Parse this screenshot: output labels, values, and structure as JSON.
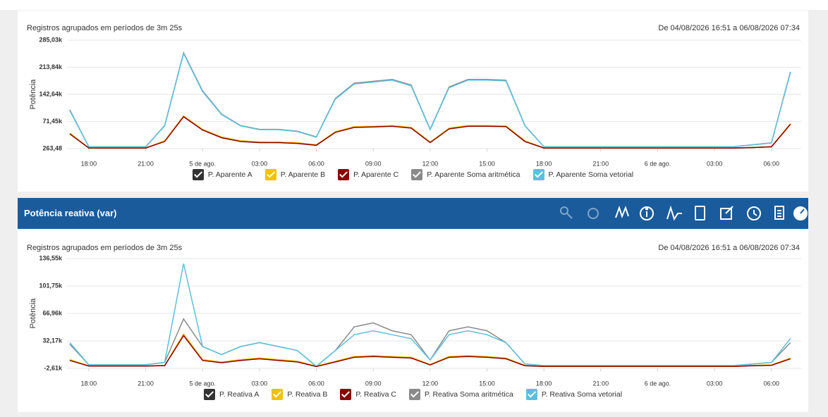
{
  "panel": {
    "title": "Potência reativa (var)"
  },
  "chart_data": [
    {
      "type": "line",
      "subtitle": "Registros agrupados em períodos de 3m 25s",
      "range": "De 04/08/2026 16:51 a 06/08/2026 07:34",
      "y_label": "Potência",
      "x": [
        17,
        18,
        19,
        20,
        21,
        22,
        23,
        24,
        25,
        26,
        27,
        28,
        29,
        30,
        31,
        32,
        33,
        34,
        35,
        36,
        37,
        38,
        39,
        40,
        41,
        42,
        43,
        44,
        45,
        46,
        47,
        48,
        49,
        50,
        51,
        52,
        53,
        54,
        55
      ],
      "xlim": [
        16.85,
        55.57
      ],
      "xticks": [
        {
          "value": 18,
          "label": "18:00"
        },
        {
          "value": 21,
          "label": "21:00"
        },
        {
          "value": 24,
          "label": "5 de ago."
        },
        {
          "value": 27,
          "label": "03:00"
        },
        {
          "value": 30,
          "label": "06:00"
        },
        {
          "value": 33,
          "label": "09:00"
        },
        {
          "value": 36,
          "label": "12:00"
        },
        {
          "value": 39,
          "label": "15:00"
        },
        {
          "value": 42,
          "label": "18:00"
        },
        {
          "value": 45,
          "label": "21:00"
        },
        {
          "value": 48,
          "label": "6 de ago."
        },
        {
          "value": 51,
          "label": "03:00"
        },
        {
          "value": 54,
          "label": "06:00"
        }
      ],
      "ylim": [
        263.48,
        285030
      ],
      "yticks": [
        {
          "value": 263.48,
          "label": "263,48"
        },
        {
          "value": 71450,
          "label": "71,45k"
        },
        {
          "value": 142640,
          "label": "142,64k"
        },
        {
          "value": 213840,
          "label": "213,84k"
        },
        {
          "value": 285030,
          "label": "285,03k"
        }
      ],
      "grid": true,
      "series": [
        {
          "name": "P. Aparente Soma aritmética",
          "color": "#8a8a8a",
          "values": [
            102000,
            5200,
            5200,
            5200,
            5200,
            61000,
            252000,
            152000,
            91000,
            61000,
            51000,
            51000,
            46000,
            31000,
            132000,
            172000,
            177000,
            182000,
            167000,
            51000,
            162000,
            182000,
            182000,
            180000,
            61000,
            5200,
            5200,
            5200,
            5200,
            5200,
            5200,
            5200,
            5200,
            5200,
            5200,
            5200,
            10500,
            15500,
            202000
          ]
        },
        {
          "name": "P. Aparente Soma vetorial",
          "color": "#5bc0de",
          "values": [
            100000,
            5000,
            5000,
            5000,
            5000,
            60000,
            250000,
            150000,
            90000,
            60000,
            50000,
            50000,
            45000,
            30000,
            130000,
            170000,
            175000,
            180000,
            165000,
            50000,
            160000,
            180000,
            180000,
            178000,
            60000,
            5000,
            5000,
            5000,
            5000,
            5000,
            5000,
            5000,
            5000,
            5000,
            5000,
            5000,
            10000,
            15000,
            200000
          ]
        },
        {
          "name": "P. Aparente A",
          "color": "#333333",
          "values": [
            40000,
            2000,
            2000,
            2000,
            2000,
            20000,
            85000,
            50000,
            30000,
            20000,
            17000,
            17000,
            15000,
            10000,
            44000,
            57000,
            58000,
            60000,
            55000,
            17000,
            53000,
            60000,
            60000,
            59000,
            20000,
            2000,
            2000,
            2000,
            2000,
            2000,
            2000,
            2000,
            2000,
            2000,
            2000,
            2000,
            3000,
            5000,
            65000
          ]
        },
        {
          "name": "P. Aparente B",
          "color": "#f5c000",
          "values": [
            41000,
            2000,
            2000,
            2000,
            2000,
            21000,
            86000,
            51000,
            31000,
            21000,
            18000,
            17000,
            16000,
            10000,
            45000,
            58000,
            59000,
            61000,
            56000,
            17000,
            54000,
            61000,
            61000,
            60000,
            21000,
            2000,
            2000,
            2000,
            2000,
            2000,
            2000,
            2000,
            2000,
            2000,
            2000,
            2000,
            3000,
            5000,
            66000
          ]
        },
        {
          "name": "P. Aparente C",
          "color": "#8b0000",
          "values": [
            39000,
            2000,
            2000,
            2000,
            2000,
            19000,
            84000,
            49000,
            29000,
            19000,
            16000,
            16000,
            14000,
            9000,
            43000,
            56000,
            57000,
            59000,
            54000,
            16000,
            52000,
            59000,
            59000,
            58000,
            19000,
            2000,
            2000,
            2000,
            2000,
            2000,
            2000,
            2000,
            2000,
            2000,
            2000,
            2000,
            3000,
            5000,
            64000
          ]
        }
      ],
      "legend": [
        "P. Aparente A",
        "P. Aparente B",
        "P. Aparente C",
        "P. Aparente Soma aritmética",
        "P. Aparente Soma vetorial"
      ]
    },
    {
      "type": "line",
      "subtitle": "Registros agrupados em períodos de 3m 25s",
      "range": "De 04/08/2026 16:51 a 06/08/2026 07:34",
      "y_label": "Potência",
      "x": [
        17,
        18,
        19,
        20,
        21,
        22,
        23,
        24,
        25,
        26,
        27,
        28,
        29,
        30,
        31,
        32,
        33,
        34,
        35,
        36,
        37,
        38,
        39,
        40,
        41,
        42,
        43,
        44,
        45,
        46,
        47,
        48,
        49,
        50,
        51,
        52,
        53,
        54,
        55
      ],
      "xlim": [
        16.85,
        55.57
      ],
      "xticks": [
        {
          "value": 18,
          "label": "18:00"
        },
        {
          "value": 21,
          "label": "21:00"
        },
        {
          "value": 24,
          "label": "5 de ago."
        },
        {
          "value": 27,
          "label": "03:00"
        },
        {
          "value": 30,
          "label": "06:00"
        },
        {
          "value": 33,
          "label": "09:00"
        },
        {
          "value": 36,
          "label": "12:00"
        },
        {
          "value": 39,
          "label": "15:00"
        },
        {
          "value": 42,
          "label": "18:00"
        },
        {
          "value": 45,
          "label": "21:00"
        },
        {
          "value": 48,
          "label": "6 de ago."
        },
        {
          "value": 51,
          "label": "03:00"
        },
        {
          "value": 54,
          "label": "06:00"
        }
      ],
      "ylim": [
        -2610,
        136550
      ],
      "yticks": [
        {
          "value": -2610,
          "label": "-2,61k"
        },
        {
          "value": 32170,
          "label": "32,17k"
        },
        {
          "value": 66960,
          "label": "66,96k"
        },
        {
          "value": 101750,
          "label": "101,75k"
        },
        {
          "value": 136550,
          "label": "136,55k"
        }
      ],
      "grid": true,
      "series": [
        {
          "name": "P. Reativa Soma aritmética",
          "color": "#8a8a8a",
          "values": [
            28000,
            2000,
            2000,
            2000,
            2000,
            5000,
            60000,
            25000,
            15000,
            25000,
            30000,
            25000,
            20000,
            0,
            20000,
            50000,
            55000,
            45000,
            40000,
            8000,
            45000,
            50000,
            45000,
            30000,
            3000,
            1000,
            1000,
            1000,
            1000,
            1000,
            1000,
            1000,
            1000,
            1000,
            1000,
            1000,
            3000,
            5000,
            30000
          ]
        },
        {
          "name": "P. Reativa Soma vetorial",
          "color": "#5bc0de",
          "values": [
            30000,
            2000,
            2000,
            2000,
            2000,
            5000,
            130000,
            25000,
            15000,
            25000,
            30000,
            25000,
            20000,
            0,
            20000,
            40000,
            45000,
            40000,
            35000,
            8000,
            40000,
            45000,
            40000,
            30000,
            3000,
            1000,
            1000,
            1000,
            1000,
            1000,
            1000,
            1000,
            1000,
            1000,
            1000,
            1000,
            3000,
            5000,
            35000
          ]
        },
        {
          "name": "P. Reativa A",
          "color": "#333333",
          "values": [
            8000,
            500,
            500,
            500,
            500,
            1000,
            40000,
            8000,
            5000,
            8000,
            10000,
            8000,
            6000,
            0,
            6000,
            12000,
            13000,
            12000,
            11000,
            2000,
            12000,
            13000,
            12000,
            10000,
            1000,
            0,
            0,
            0,
            0,
            0,
            0,
            0,
            0,
            0,
            0,
            0,
            1000,
            1500,
            10000
          ]
        },
        {
          "name": "P. Reativa B",
          "color": "#f5c000",
          "values": [
            8500,
            600,
            600,
            600,
            600,
            1200,
            41000,
            8500,
            5500,
            8500,
            10500,
            8500,
            6500,
            300,
            6500,
            12500,
            13500,
            12500,
            11500,
            2300,
            12500,
            13500,
            12500,
            10500,
            1200,
            200,
            200,
            200,
            200,
            200,
            200,
            200,
            200,
            200,
            200,
            200,
            1200,
            1800,
            10500
          ]
        },
        {
          "name": "P. Reativa C",
          "color": "#8b0000",
          "values": [
            7500,
            400,
            400,
            400,
            400,
            900,
            39000,
            7500,
            4500,
            7500,
            9500,
            7500,
            5500,
            -200,
            5500,
            11500,
            12500,
            11500,
            10500,
            1800,
            11500,
            12500,
            11500,
            9500,
            800,
            -100,
            -100,
            -100,
            -100,
            -100,
            -100,
            -100,
            -100,
            -100,
            -100,
            -100,
            800,
            1300,
            9500
          ]
        }
      ],
      "legend": [
        "P. Reativa A",
        "P. Reativa B",
        "P. Reativa C",
        "P. Reativa Soma aritmética",
        "P. Reativa Soma vetorial"
      ]
    }
  ]
}
